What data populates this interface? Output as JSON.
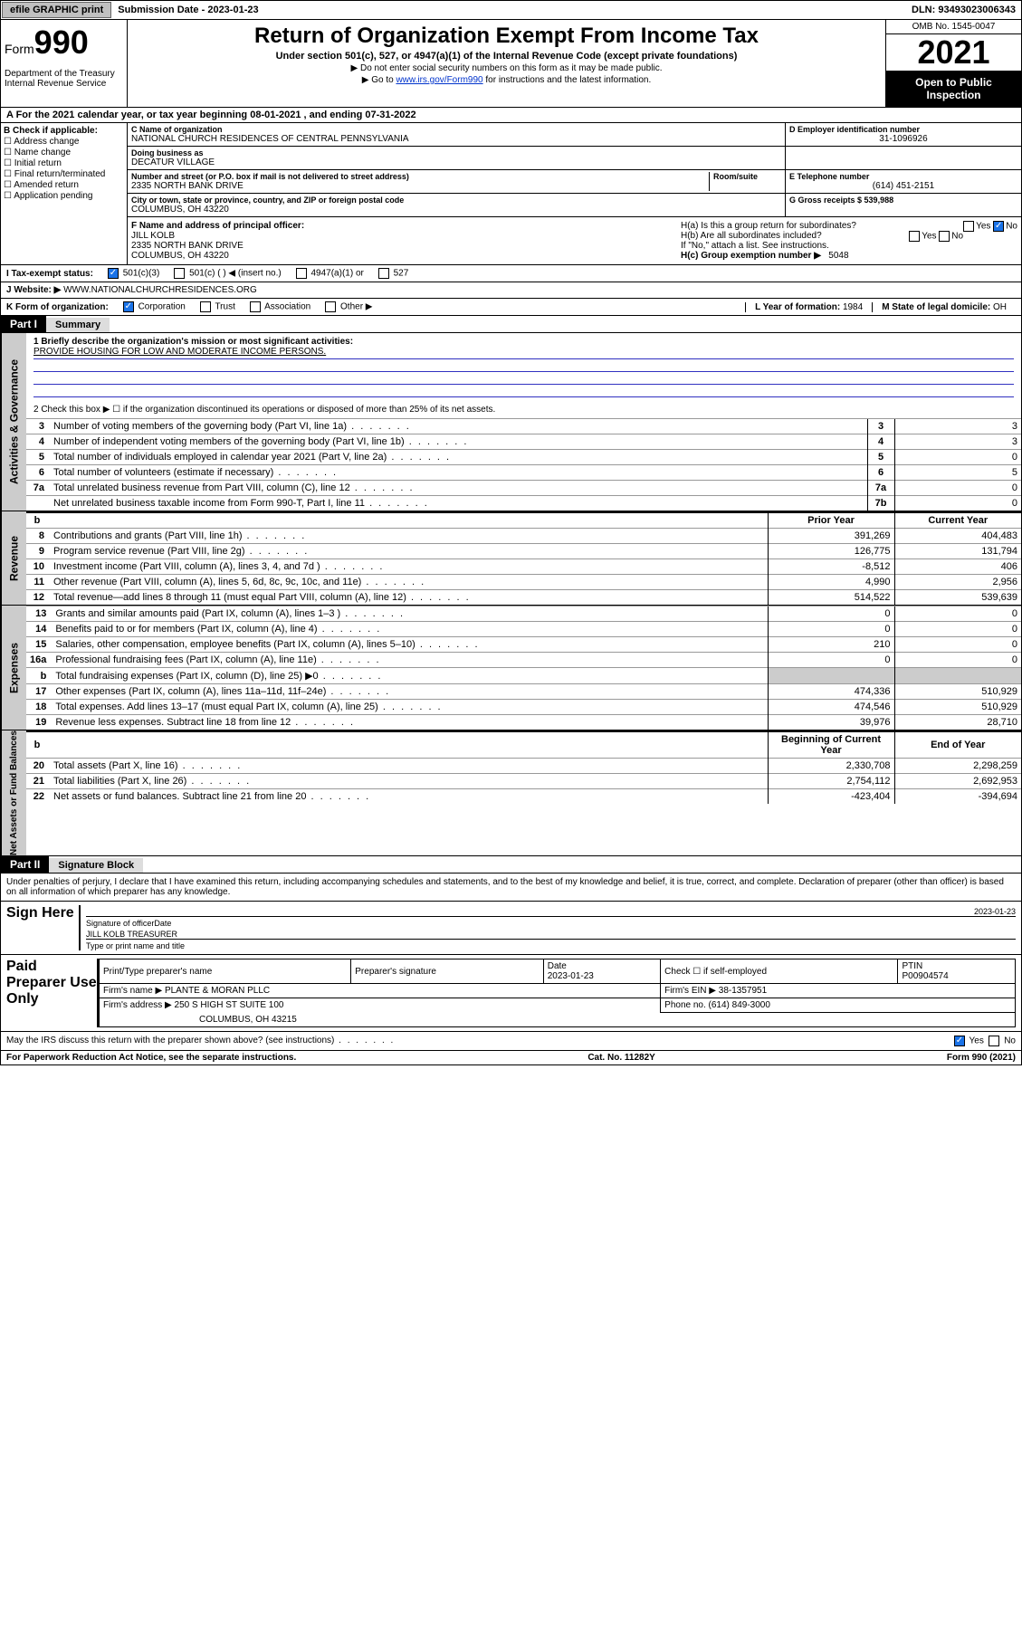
{
  "topbar": {
    "efile": "efile GRAPHIC print",
    "submission_label": "Submission Date - ",
    "submission_date": "2023-01-23",
    "dln_label": "DLN: ",
    "dln": "93493023006343"
  },
  "header": {
    "form_word": "Form",
    "form_num": "990",
    "title": "Return of Organization Exempt From Income Tax",
    "subtitle": "Under section 501(c), 527, or 4947(a)(1) of the Internal Revenue Code (except private foundations)",
    "note1": "▶ Do not enter social security numbers on this form as it may be made public.",
    "note2_pre": "▶ Go to ",
    "note2_link": "www.irs.gov/Form990",
    "note2_post": " for instructions and the latest information.",
    "dept": "Department of the Treasury\nInternal Revenue Service",
    "omb": "OMB No. 1545-0047",
    "year": "2021",
    "inspect": "Open to Public Inspection"
  },
  "period": {
    "text_pre": "A For the 2021 calendar year, or tax year beginning ",
    "begin": "08-01-2021",
    "mid": " , and ending ",
    "end": "07-31-2022"
  },
  "boxB": {
    "label": "B Check if applicable:",
    "items": [
      "Address change",
      "Name change",
      "Initial return",
      "Final return/terminated",
      "Amended return",
      "Application pending"
    ]
  },
  "boxC": {
    "name_label": "C Name of organization",
    "name": "NATIONAL CHURCH RESIDENCES OF CENTRAL PENNSYLVANIA",
    "dba_label": "Doing business as",
    "dba": "DECATUR VILLAGE",
    "addr_label": "Number and street (or P.O. box if mail is not delivered to street address)",
    "room_label": "Room/suite",
    "addr": "2335 NORTH BANK DRIVE",
    "city_label": "City or town, state or province, country, and ZIP or foreign postal code",
    "city": "COLUMBUS, OH  43220"
  },
  "boxD": {
    "label": "D Employer identification number",
    "value": "31-1096926"
  },
  "boxE": {
    "label": "E Telephone number",
    "value": "(614) 451-2151"
  },
  "boxG": {
    "label": "G Gross receipts $ ",
    "value": "539,988"
  },
  "boxF": {
    "label": "F Name and address of principal officer:",
    "name": "JILL KOLB",
    "addr1": "2335 NORTH BANK DRIVE",
    "addr2": "COLUMBUS, OH  43220"
  },
  "boxH": {
    "a": "H(a)  Is this a group return for subordinates?",
    "a_yes": "Yes",
    "a_no": "No",
    "a_checked": "No",
    "b": "H(b)  Are all subordinates included?",
    "b_yes": "Yes",
    "b_no": "No",
    "b_note": "If \"No,\" attach a list. See instructions.",
    "c_label": "H(c)  Group exemption number ▶",
    "c_value": "5048"
  },
  "boxI": {
    "label": "I  Tax-exempt status:",
    "opt1": "501(c)(3)",
    "opt2": "501(c) (  ) ◀ (insert no.)",
    "opt3": "4947(a)(1) or",
    "opt4": "527"
  },
  "boxJ": {
    "label": "J  Website: ▶",
    "value": "WWW.NATIONALCHURCHRESIDENCES.ORG"
  },
  "boxK": {
    "label": "K Form of organization:",
    "opts": [
      "Corporation",
      "Trust",
      "Association",
      "Other ▶"
    ]
  },
  "boxL": {
    "label": "L Year of formation: ",
    "value": "1984"
  },
  "boxM": {
    "label": "M State of legal domicile: ",
    "value": "OH"
  },
  "part1": {
    "hdr": "Part I",
    "title": "Summary"
  },
  "mission": {
    "label": "1  Briefly describe the organization's mission or most significant activities:",
    "text": "PROVIDE HOUSING FOR LOW AND MODERATE INCOME PERSONS."
  },
  "line2": "2   Check this box ▶ ☐  if the organization discontinued its operations or disposed of more than 25% of its net assets.",
  "governance": {
    "side": "Activities & Governance",
    "rows": [
      {
        "n": "3",
        "t": "Number of voting members of the governing body (Part VI, line 1a)",
        "box": "3",
        "v": "3"
      },
      {
        "n": "4",
        "t": "Number of independent voting members of the governing body (Part VI, line 1b)",
        "box": "4",
        "v": "3"
      },
      {
        "n": "5",
        "t": "Total number of individuals employed in calendar year 2021 (Part V, line 2a)",
        "box": "5",
        "v": "0"
      },
      {
        "n": "6",
        "t": "Total number of volunteers (estimate if necessary)",
        "box": "6",
        "v": "5"
      },
      {
        "n": "7a",
        "t": "Total unrelated business revenue from Part VIII, column (C), line 12",
        "box": "7a",
        "v": "0"
      },
      {
        "n": "",
        "t": "Net unrelated business taxable income from Form 990-T, Part I, line 11",
        "box": "7b",
        "v": "0"
      }
    ]
  },
  "col_hdr": {
    "b": "b",
    "prior": "Prior Year",
    "curr": "Current Year"
  },
  "revenue": {
    "side": "Revenue",
    "rows": [
      {
        "n": "8",
        "t": "Contributions and grants (Part VIII, line 1h)",
        "p": "391,269",
        "c": "404,483"
      },
      {
        "n": "9",
        "t": "Program service revenue (Part VIII, line 2g)",
        "p": "126,775",
        "c": "131,794"
      },
      {
        "n": "10",
        "t": "Investment income (Part VIII, column (A), lines 3, 4, and 7d )",
        "p": "-8,512",
        "c": "406"
      },
      {
        "n": "11",
        "t": "Other revenue (Part VIII, column (A), lines 5, 6d, 8c, 9c, 10c, and 11e)",
        "p": "4,990",
        "c": "2,956"
      },
      {
        "n": "12",
        "t": "Total revenue—add lines 8 through 11 (must equal Part VIII, column (A), line 12)",
        "p": "514,522",
        "c": "539,639"
      }
    ]
  },
  "expenses": {
    "side": "Expenses",
    "rows": [
      {
        "n": "13",
        "t": "Grants and similar amounts paid (Part IX, column (A), lines 1–3 )",
        "p": "0",
        "c": "0"
      },
      {
        "n": "14",
        "t": "Benefits paid to or for members (Part IX, column (A), line 4)",
        "p": "0",
        "c": "0"
      },
      {
        "n": "15",
        "t": "Salaries, other compensation, employee benefits (Part IX, column (A), lines 5–10)",
        "p": "210",
        "c": "0"
      },
      {
        "n": "16a",
        "t": "Professional fundraising fees (Part IX, column (A), line 11e)",
        "p": "0",
        "c": "0"
      },
      {
        "n": "b",
        "t": "Total fundraising expenses (Part IX, column (D), line 25) ▶0",
        "shade": true
      },
      {
        "n": "17",
        "t": "Other expenses (Part IX, column (A), lines 11a–11d, 11f–24e)",
        "p": "474,336",
        "c": "510,929"
      },
      {
        "n": "18",
        "t": "Total expenses. Add lines 13–17 (must equal Part IX, column (A), line 25)",
        "p": "474,546",
        "c": "510,929"
      },
      {
        "n": "19",
        "t": "Revenue less expenses. Subtract line 18 from line 12",
        "p": "39,976",
        "c": "28,710"
      }
    ]
  },
  "col_hdr2": {
    "prior": "Beginning of Current Year",
    "curr": "End of Year"
  },
  "netassets": {
    "side": "Net Assets or Fund Balances",
    "rows": [
      {
        "n": "20",
        "t": "Total assets (Part X, line 16)",
        "p": "2,330,708",
        "c": "2,298,259"
      },
      {
        "n": "21",
        "t": "Total liabilities (Part X, line 26)",
        "p": "2,754,112",
        "c": "2,692,953"
      },
      {
        "n": "22",
        "t": "Net assets or fund balances. Subtract line 21 from line 20",
        "p": "-423,404",
        "c": "-394,694"
      }
    ]
  },
  "part2": {
    "hdr": "Part II",
    "title": "Signature Block"
  },
  "penalty": "Under penalties of perjury, I declare that I have examined this return, including accompanying schedules and statements, and to the best of my knowledge and belief, it is true, correct, and complete. Declaration of preparer (other than officer) is based on all information of which preparer has any knowledge.",
  "sign": {
    "label": "Sign Here",
    "sig_label": "Signature of officer",
    "date_label": "Date",
    "date": "2023-01-23",
    "name": "JILL KOLB  TREASURER",
    "name_label": "Type or print name and title"
  },
  "prep": {
    "label": "Paid Preparer Use Only",
    "h1": "Print/Type preparer's name",
    "h2": "Preparer's signature",
    "h3": "Date",
    "h3v": "2023-01-23",
    "h4": "Check ☐ if self-employed",
    "h5": "PTIN",
    "h5v": "P00904574",
    "firm_label": "Firm's name    ▶",
    "firm": "PLANTE & MORAN PLLC",
    "ein_label": "Firm's EIN ▶",
    "ein": "38-1357951",
    "addr_label": "Firm's address ▶",
    "addr1": "250 S HIGH ST SUITE 100",
    "addr2": "COLUMBUS, OH  43215",
    "phone_label": "Phone no. ",
    "phone": "(614) 849-3000"
  },
  "discuss": {
    "q": "May the IRS discuss this return with the preparer shown above? (see instructions)",
    "yes": "Yes",
    "no": "No"
  },
  "footer": {
    "left": "For Paperwork Reduction Act Notice, see the separate instructions.",
    "mid": "Cat. No. 11282Y",
    "right": "Form 990 (2021)"
  },
  "colors": {
    "link": "#0033cc",
    "black": "#000000",
    "gray": "#cccccc",
    "check": "#1a73e8"
  }
}
